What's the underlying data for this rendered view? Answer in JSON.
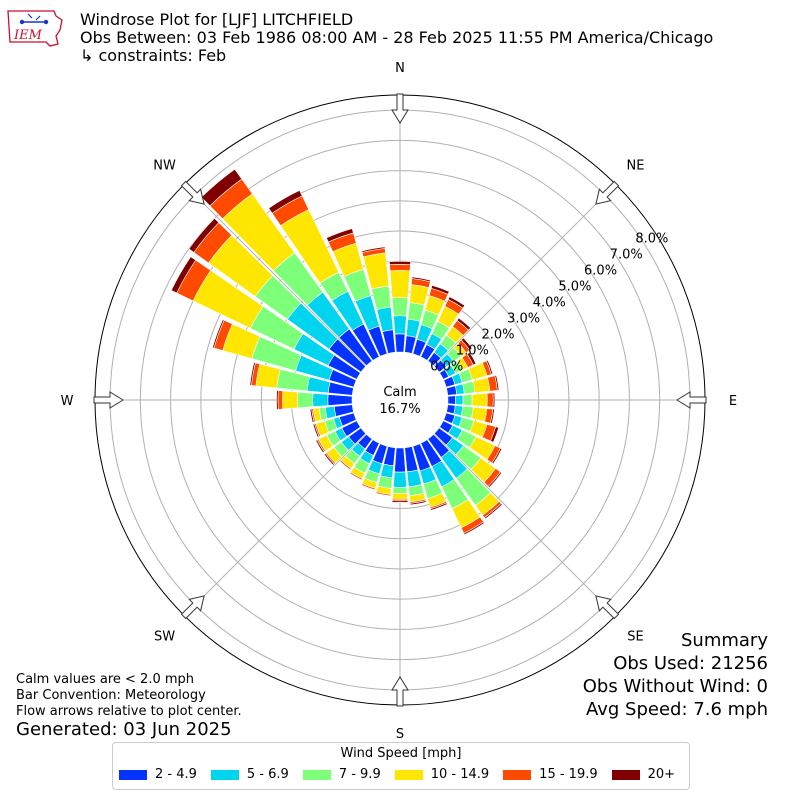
{
  "header": {
    "title": "Windrose Plot for [LJF] LITCHFIELD",
    "subtitle": "Obs Between: 03 Feb 1986 08:00 AM - 28 Feb 2025 11:55 PM America/Chicago",
    "constraints": "↳ constraints: Feb"
  },
  "logo": {
    "text": "IEM"
  },
  "notes": {
    "calm": "Calm values are < 2.0 mph",
    "convention": "Bar Convention: Meteorology",
    "flow": "Flow arrows relative to plot center.",
    "generated": "Generated: 03 Jun 2025"
  },
  "summary": {
    "title": "Summary",
    "obs_used": "Obs Used: 21256",
    "obs_without_wind": "Obs Without Wind: 0",
    "avg_speed": "Avg Speed: 7.6 mph"
  },
  "legend": {
    "title": "Wind Speed [mph]",
    "items": [
      {
        "label": "2 - 4.9",
        "color": "#0432ff"
      },
      {
        "label": "5 - 6.9",
        "color": "#00d4ee"
      },
      {
        "label": "7 - 9.9",
        "color": "#7dff7a"
      },
      {
        "label": "10 - 14.9",
        "color": "#ffe600"
      },
      {
        "label": "15 - 19.9",
        "color": "#ff4a00"
      },
      {
        "label": "20+",
        "color": "#800000"
      }
    ]
  },
  "chart_data": {
    "type": "windrose",
    "calm_label": "Calm",
    "calm_value": "16.7%",
    "compass": [
      "N",
      "NE",
      "E",
      "SE",
      "S",
      "SW",
      "W",
      "NW"
    ],
    "radial_ticks": [
      "0.0%",
      "1.0%",
      "2.0%",
      "3.0%",
      "4.0%",
      "5.0%",
      "6.0%",
      "7.0%",
      "8.0%"
    ],
    "rmax": 8.5,
    "bin_labels": [
      "2 - 4.9",
      "5 - 6.9",
      "7 - 9.9",
      "10 - 14.9",
      "15 - 19.9",
      "20+"
    ],
    "directions_deg": [
      0,
      10,
      20,
      30,
      40,
      50,
      60,
      70,
      80,
      90,
      100,
      110,
      120,
      130,
      140,
      150,
      160,
      170,
      180,
      190,
      200,
      210,
      220,
      230,
      240,
      250,
      260,
      270,
      280,
      290,
      300,
      310,
      320,
      330,
      340,
      350
    ],
    "cumulative_percent": [
      [
        0.6,
        1.2,
        1.8,
        2.7,
        2.9,
        3.0
      ],
      [
        0.55,
        1.1,
        1.65,
        2.25,
        2.45,
        2.5
      ],
      [
        0.5,
        1.0,
        1.5,
        2.0,
        2.25,
        2.35
      ],
      [
        0.45,
        0.85,
        1.3,
        1.85,
        2.1,
        2.2
      ],
      [
        0.35,
        0.7,
        1.05,
        1.4,
        1.65,
        1.75
      ],
      [
        0.3,
        0.6,
        0.9,
        1.1,
        1.25,
        1.35
      ],
      [
        0.2,
        0.45,
        0.7,
        0.9,
        1.1,
        1.2
      ],
      [
        0.3,
        0.55,
        0.9,
        1.4,
        1.55,
        1.6
      ],
      [
        0.3,
        0.55,
        0.9,
        1.4,
        1.65,
        1.7
      ],
      [
        0.25,
        0.5,
        0.8,
        1.3,
        1.5,
        1.55
      ],
      [
        0.25,
        0.5,
        0.85,
        1.3,
        1.5,
        1.55
      ],
      [
        0.3,
        0.55,
        0.95,
        1.4,
        1.7,
        1.8
      ],
      [
        0.35,
        0.7,
        1.2,
        1.9,
        2.1,
        2.15
      ],
      [
        0.55,
        1.0,
        1.7,
        2.3,
        2.5,
        2.55
      ],
      [
        0.75,
        1.6,
        2.7,
        3.1,
        3.2,
        3.25
      ],
      [
        0.85,
        1.6,
        2.4,
        3.1,
        3.3,
        3.35
      ],
      [
        0.85,
        1.3,
        1.8,
        2.1,
        2.15,
        2.2
      ],
      [
        0.8,
        1.3,
        1.6,
        1.8,
        1.85,
        1.9
      ],
      [
        0.8,
        1.3,
        1.5,
        1.7,
        1.75,
        1.8
      ],
      [
        0.6,
        1.0,
        1.35,
        1.55,
        1.6,
        1.62
      ],
      [
        0.6,
        0.95,
        1.25,
        1.45,
        1.5,
        1.52
      ],
      [
        0.45,
        0.75,
        1.1,
        1.3,
        1.35,
        1.37
      ],
      [
        0.4,
        0.7,
        1.0,
        1.2,
        1.25,
        1.27
      ],
      [
        0.5,
        0.8,
        1.1,
        1.4,
        1.45,
        1.5
      ],
      [
        0.55,
        0.8,
        1.1,
        1.4,
        1.45,
        1.5
      ],
      [
        0.5,
        0.7,
        1.0,
        1.3,
        1.35,
        1.4
      ],
      [
        0.6,
        0.9,
        1.1,
        1.3,
        1.35,
        1.4
      ],
      [
        0.8,
        1.3,
        1.8,
        2.3,
        2.45,
        2.5
      ],
      [
        0.8,
        1.5,
        2.5,
        3.2,
        3.35,
        3.4
      ],
      [
        0.85,
        2.0,
        3.5,
        4.5,
        4.8,
        4.85
      ],
      [
        1.05,
        2.3,
        3.9,
        6.0,
        6.6,
        6.8
      ],
      [
        1.3,
        3.0,
        4.3,
        6.2,
        6.8,
        7.0
      ],
      [
        1.3,
        2.8,
        4.4,
        6.8,
        7.4,
        7.8
      ],
      [
        1.2,
        2.4,
        3.1,
        5.4,
        5.9,
        6.1
      ],
      [
        0.95,
        2.0,
        2.9,
        3.8,
        4.15,
        4.3
      ],
      [
        0.75,
        1.5,
        2.2,
        3.3,
        3.45,
        3.5
      ]
    ]
  }
}
